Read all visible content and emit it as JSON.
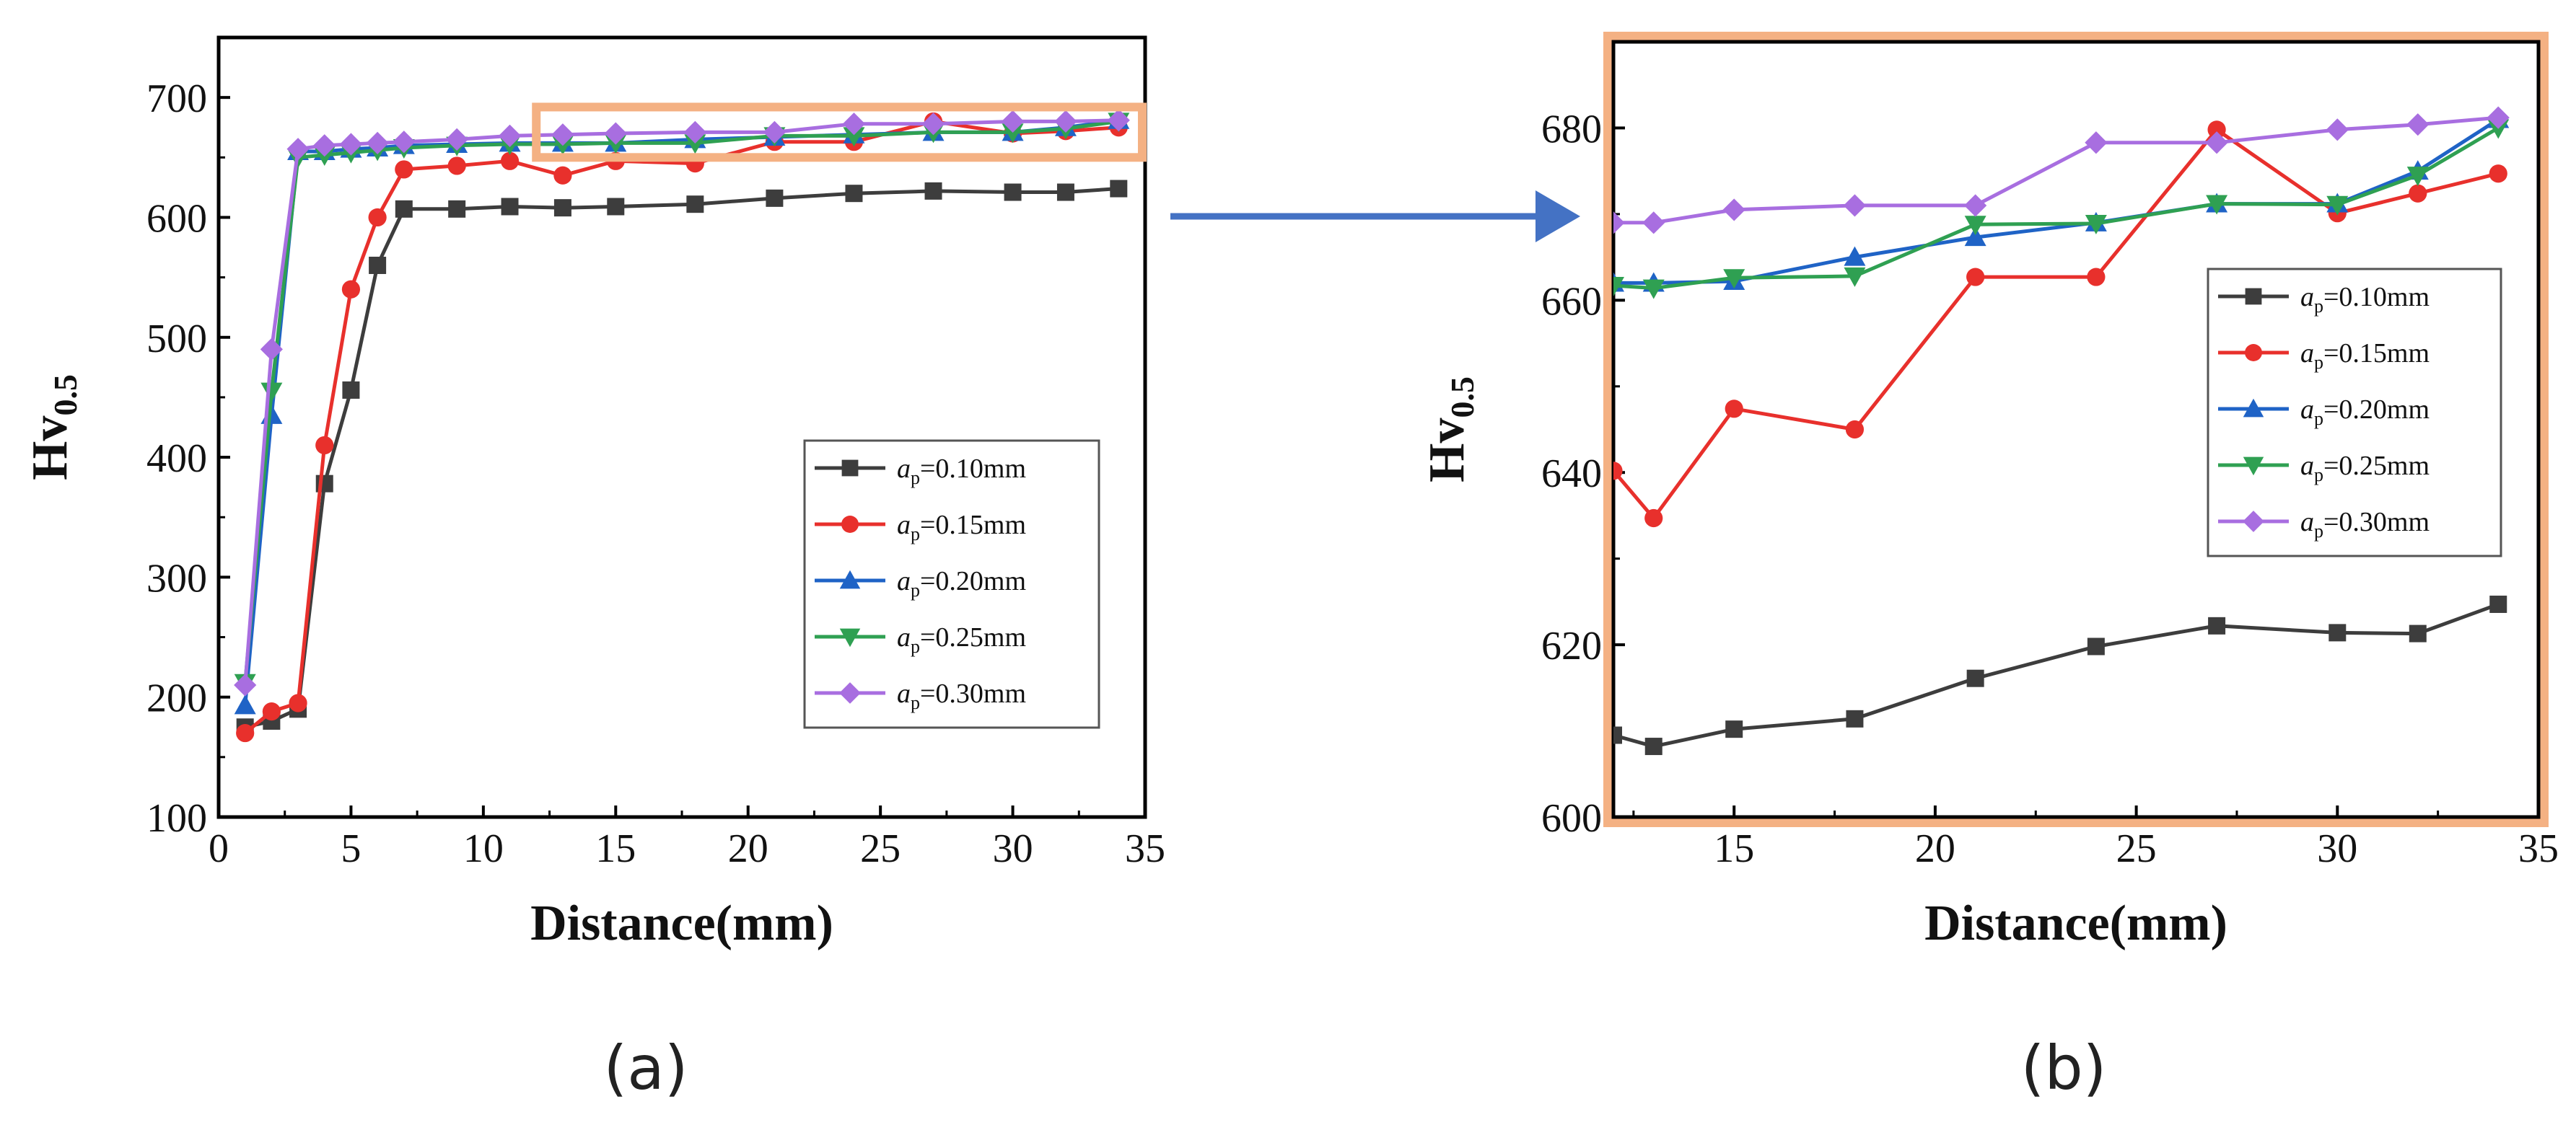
{
  "chart_data": [
    {
      "type": "line",
      "panel_label": "(a)",
      "xlabel": "Distance(mm)",
      "ylabel_main": "Hv",
      "ylabel_sub": "0.5",
      "xlim": [
        0,
        35
      ],
      "ylim": [
        100,
        750
      ],
      "xticks": [
        0,
        5,
        10,
        15,
        20,
        25,
        30,
        35
      ],
      "yticks": [
        100,
        200,
        300,
        400,
        500,
        600,
        700
      ],
      "legend_position": "right",
      "legend_prefix": "a",
      "legend_subscript": "p",
      "series": [
        {
          "name": "=0.10mm",
          "color": "#3d3d3d",
          "marker": "square",
          "x": [
            1,
            2,
            3,
            4,
            5,
            6,
            7,
            9,
            11,
            13,
            15,
            18,
            21,
            24,
            27,
            30,
            32,
            34
          ],
          "y": [
            175,
            180,
            190,
            378,
            456,
            560,
            607,
            607,
            609,
            608,
            609,
            611,
            616,
            620,
            622,
            621,
            621,
            624
          ]
        },
        {
          "name": "=0.15mm",
          "color": "#e8302c",
          "marker": "circle",
          "x": [
            1,
            2,
            3,
            4,
            5,
            6,
            7,
            9,
            11,
            13,
            15,
            18,
            21,
            24,
            27,
            30,
            32,
            34
          ],
          "y": [
            170,
            188,
            195,
            410,
            540,
            600,
            640,
            643,
            647,
            635,
            647,
            645,
            663,
            663,
            680,
            670,
            672,
            675
          ]
        },
        {
          "name": "=0.20mm",
          "color": "#1f63c6",
          "marker": "triangle-up",
          "x": [
            1,
            2,
            3,
            4,
            5,
            6,
            7,
            9,
            11,
            13,
            15,
            18,
            21,
            24,
            27,
            30,
            32,
            34
          ],
          "y": [
            193,
            435,
            655,
            655,
            657,
            658,
            660,
            661,
            662,
            662,
            662,
            665,
            667,
            669,
            671,
            671,
            675,
            681
          ]
        },
        {
          "name": "=0.25mm",
          "color": "#2fa052",
          "marker": "triangle-down",
          "x": [
            1,
            2,
            3,
            4,
            5,
            6,
            7,
            9,
            11,
            13,
            15,
            18,
            21,
            24,
            27,
            30,
            32,
            34
          ],
          "y": [
            212,
            455,
            650,
            652,
            654,
            656,
            658,
            660,
            661,
            661,
            662,
            662,
            668,
            668,
            671,
            671,
            674,
            680
          ]
        },
        {
          "name": "=0.30mm",
          "color": "#a86ee0",
          "marker": "diamond",
          "x": [
            1,
            2,
            3,
            4,
            5,
            6,
            7,
            9,
            11,
            13,
            15,
            18,
            21,
            24,
            27,
            30,
            32,
            34
          ],
          "y": [
            210,
            490,
            657,
            660,
            661,
            662,
            663,
            665,
            668,
            669,
            670,
            671,
            671,
            678,
            678,
            680,
            680,
            681
          ]
        }
      ],
      "zoom_box": {
        "x": [
          12,
          35
        ],
        "y": [
          650,
          692
        ],
        "color": "#f4b183"
      }
    },
    {
      "type": "line",
      "panel_label": "(b)",
      "xlabel": "Distance(mm)",
      "ylabel_main": "Hv",
      "ylabel_sub": "0.5",
      "xlim": [
        12,
        35
      ],
      "ylim": [
        600,
        690
      ],
      "xticks": [
        15,
        20,
        25,
        30,
        35
      ],
      "yticks": [
        600,
        620,
        640,
        660,
        680
      ],
      "legend_position": "right",
      "legend_prefix": "a",
      "legend_subscript": "p",
      "frame_color": "#f4b183",
      "series": [
        {
          "name": "=0.10mm",
          "color": "#3d3d3d",
          "marker": "square",
          "x": [
            12,
            13,
            15,
            18,
            21,
            24,
            27,
            30,
            32,
            34
          ],
          "y": [
            609.5,
            608.2,
            610.2,
            611.4,
            616.1,
            619.8,
            622.2,
            621.4,
            621.3,
            624.7
          ]
        },
        {
          "name": "=0.15mm",
          "color": "#e8302c",
          "marker": "circle",
          "x": [
            12,
            13,
            15,
            18,
            21,
            24,
            27,
            30,
            32,
            34
          ],
          "y": [
            640.2,
            634.7,
            647.4,
            645.0,
            662.7,
            662.7,
            679.8,
            670.1,
            672.4,
            674.7
          ]
        },
        {
          "name": "=0.20mm",
          "color": "#1f63c6",
          "marker": "triangle-up",
          "x": [
            12,
            13,
            15,
            18,
            21,
            24,
            27,
            30,
            32,
            34
          ],
          "y": [
            662.0,
            662.0,
            662.2,
            665.0,
            667.3,
            669.0,
            671.2,
            671.2,
            675.0,
            681.0
          ]
        },
        {
          "name": "=0.25mm",
          "color": "#2fa052",
          "marker": "triangle-down",
          "x": [
            12,
            13,
            15,
            18,
            21,
            24,
            27,
            30,
            32,
            34
          ],
          "y": [
            661.7,
            661.4,
            662.6,
            662.8,
            668.8,
            668.9,
            671.2,
            671.1,
            674.5,
            680.0
          ]
        },
        {
          "name": "=0.30mm",
          "color": "#a86ee0",
          "marker": "diamond",
          "x": [
            12,
            13,
            15,
            18,
            21,
            24,
            27,
            30,
            32,
            34
          ],
          "y": [
            669.0,
            669.0,
            670.5,
            671.0,
            671.0,
            678.3,
            678.3,
            679.8,
            680.4,
            681.2
          ]
        }
      ]
    }
  ]
}
